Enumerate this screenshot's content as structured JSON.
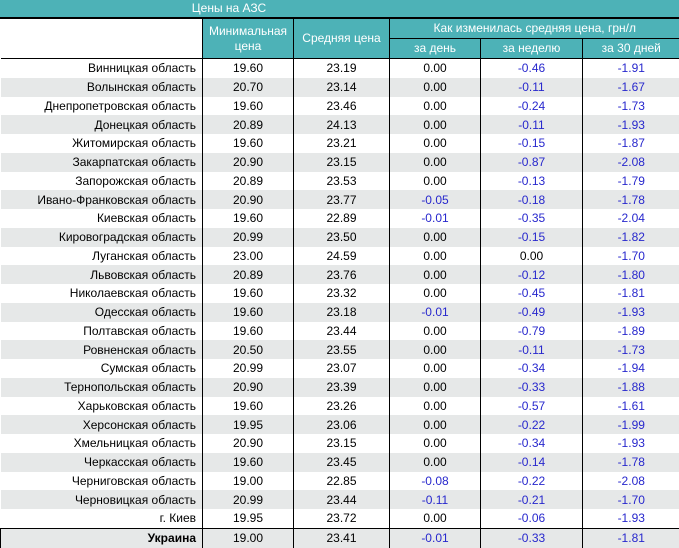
{
  "title": "Цены на АЗС",
  "columns": {
    "min_price": "Минимальная цена",
    "avg_price": "Средняя цена",
    "change_group": "Как изменилась средняя цена, грн/л",
    "per_day": "за день",
    "per_week": "за неделю",
    "per_30_days": "за 30 дней"
  },
  "rows": [
    {
      "region": "Винницкая область",
      "min": "19.60",
      "avg": "23.19",
      "day": "0.00",
      "week": "-0.46",
      "d30": "-1.91"
    },
    {
      "region": "Волынская область",
      "min": "20.70",
      "avg": "23.14",
      "day": "0.00",
      "week": "-0.11",
      "d30": "-1.67"
    },
    {
      "region": "Днепропетровская область",
      "min": "19.60",
      "avg": "23.46",
      "day": "0.00",
      "week": "-0.24",
      "d30": "-1.73"
    },
    {
      "region": "Донецкая область",
      "min": "20.89",
      "avg": "24.13",
      "day": "0.00",
      "week": "-0.11",
      "d30": "-1.93"
    },
    {
      "region": "Житомирская область",
      "min": "19.60",
      "avg": "23.21",
      "day": "0.00",
      "week": "-0.15",
      "d30": "-1.87"
    },
    {
      "region": "Закарпатская область",
      "min": "20.90",
      "avg": "23.15",
      "day": "0.00",
      "week": "-0.87",
      "d30": "-2.08"
    },
    {
      "region": "Запорожская область",
      "min": "20.89",
      "avg": "23.53",
      "day": "0.00",
      "week": "-0.13",
      "d30": "-1.79"
    },
    {
      "region": "Ивано-Франковская область",
      "min": "20.90",
      "avg": "23.77",
      "day": "-0.05",
      "week": "-0.18",
      "d30": "-1.78"
    },
    {
      "region": "Киевская область",
      "min": "19.60",
      "avg": "22.89",
      "day": "-0.01",
      "week": "-0.35",
      "d30": "-2.04"
    },
    {
      "region": "Кировоградская область",
      "min": "20.99",
      "avg": "23.50",
      "day": "0.00",
      "week": "-0.15",
      "d30": "-1.82"
    },
    {
      "region": "Луганская область",
      "min": "23.00",
      "avg": "24.59",
      "day": "0.00",
      "week": "0.00",
      "d30": "-1.70"
    },
    {
      "region": "Львовская область",
      "min": "20.89",
      "avg": "23.76",
      "day": "0.00",
      "week": "-0.12",
      "d30": "-1.80"
    },
    {
      "region": "Николаевская область",
      "min": "19.60",
      "avg": "23.32",
      "day": "0.00",
      "week": "-0.45",
      "d30": "-1.81"
    },
    {
      "region": "Одесская область",
      "min": "19.60",
      "avg": "23.18",
      "day": "-0.01",
      "week": "-0.49",
      "d30": "-1.93"
    },
    {
      "region": "Полтавская область",
      "min": "19.60",
      "avg": "23.44",
      "day": "0.00",
      "week": "-0.79",
      "d30": "-1.89"
    },
    {
      "region": "Ровненская область",
      "min": "20.50",
      "avg": "23.55",
      "day": "0.00",
      "week": "-0.11",
      "d30": "-1.73"
    },
    {
      "region": "Сумская область",
      "min": "20.99",
      "avg": "23.07",
      "day": "0.00",
      "week": "-0.34",
      "d30": "-1.94"
    },
    {
      "region": "Тернопольская область",
      "min": "20.90",
      "avg": "23.39",
      "day": "0.00",
      "week": "-0.33",
      "d30": "-1.88"
    },
    {
      "region": "Харьковская область",
      "min": "19.60",
      "avg": "23.26",
      "day": "0.00",
      "week": "-0.57",
      "d30": "-1.61"
    },
    {
      "region": "Херсонская область",
      "min": "19.95",
      "avg": "23.06",
      "day": "0.00",
      "week": "-0.22",
      "d30": "-1.99"
    },
    {
      "region": "Хмельницкая область",
      "min": "20.90",
      "avg": "23.15",
      "day": "0.00",
      "week": "-0.34",
      "d30": "-1.93"
    },
    {
      "region": "Черкасская область",
      "min": "19.60",
      "avg": "23.45",
      "day": "0.00",
      "week": "-0.14",
      "d30": "-1.78"
    },
    {
      "region": "Черниговская область",
      "min": "19.00",
      "avg": "22.85",
      "day": "-0.08",
      "week": "-0.22",
      "d30": "-2.08"
    },
    {
      "region": "Черновицкая область",
      "min": "20.99",
      "avg": "23.44",
      "day": "-0.11",
      "week": "-0.21",
      "d30": "-1.70"
    },
    {
      "region": "г. Киев",
      "min": "19.95",
      "avg": "23.72",
      "day": "0.00",
      "week": "-0.06",
      "d30": "-1.93"
    }
  ],
  "total_row": {
    "region": "Украина",
    "min": "19.00",
    "avg": "23.41",
    "day": "-0.01",
    "week": "-0.33",
    "d30": "-1.81"
  },
  "colors": {
    "teal": "#4db2b7",
    "row_stripe": "#e6e8e8",
    "negative_value": "#2727cd",
    "header_text": "#ffffff",
    "border": "#000000"
  }
}
